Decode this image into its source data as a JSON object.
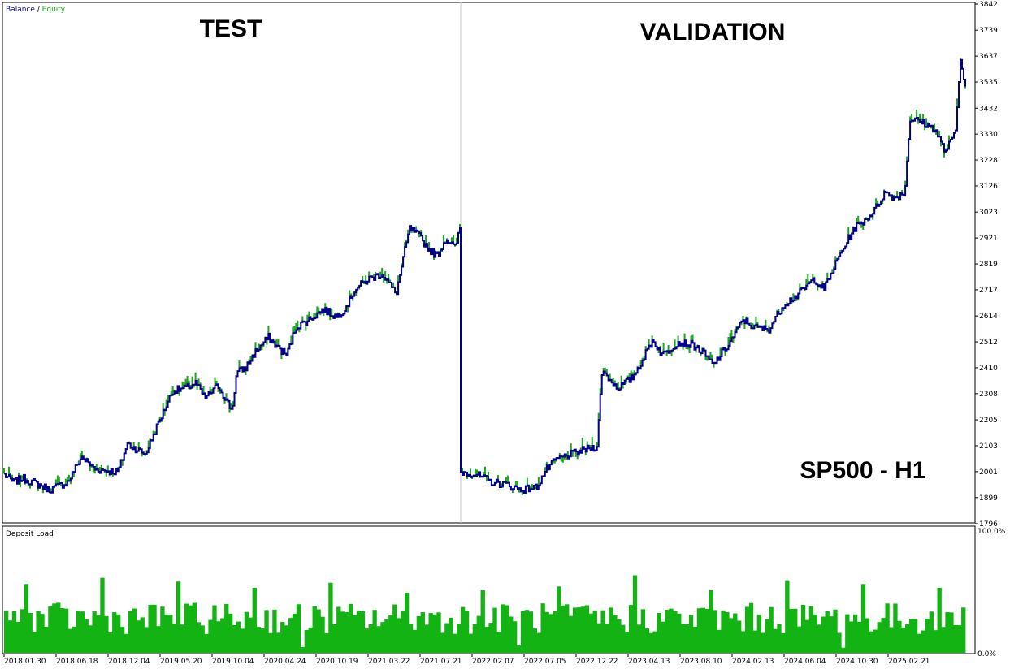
{
  "legend": {
    "balance": "Balance",
    "sep": " / ",
    "equity": "Equity"
  },
  "overlay": {
    "test": "TEST",
    "validation": "VALIDATION",
    "symbol": "SP500 - H1"
  },
  "deposit_panel": {
    "title": "Deposit Load",
    "top_label": "100.0%",
    "bottom_label": "0.0%"
  },
  "colors": {
    "balance": "#00008b",
    "equity": "#1aa81a",
    "deposit": "#13b313",
    "axis": "#000000",
    "divider": "#c8c8c8"
  },
  "chart_data": [
    {
      "type": "line",
      "series": [
        {
          "name": "Balance",
          "color": "#00008b"
        },
        {
          "name": "Equity",
          "color": "#1aa81a"
        }
      ],
      "ylim": [
        1796,
        3842
      ],
      "yticks": [
        "3842",
        "3739",
        "3637",
        "3535",
        "3432",
        "3330",
        "3228",
        "3126",
        "3023",
        "2921",
        "2819",
        "2717",
        "2614",
        "2512",
        "2410",
        "2308",
        "2205",
        "2103",
        "2001",
        "1899",
        "1796"
      ],
      "segments": [
        {
          "label": "TEST",
          "points": [
            [
              0,
              1990
            ],
            [
              0.02,
              1960
            ],
            [
              0.04,
              1975
            ],
            [
              0.07,
              1955
            ],
            [
              0.1,
              1930
            ],
            [
              0.14,
              1960
            ],
            [
              0.17,
              2060
            ],
            [
              0.2,
              2010
            ],
            [
              0.25,
              2000
            ],
            [
              0.27,
              2110
            ],
            [
              0.31,
              2070
            ],
            [
              0.34,
              2200
            ],
            [
              0.37,
              2320
            ],
            [
              0.4,
              2330
            ],
            [
              0.42,
              2350
            ],
            [
              0.44,
              2290
            ],
            [
              0.47,
              2340
            ],
            [
              0.5,
              2240
            ],
            [
              0.51,
              2390
            ],
            [
              0.53,
              2410
            ],
            [
              0.55,
              2470
            ],
            [
              0.58,
              2530
            ],
            [
              0.6,
              2490
            ],
            [
              0.62,
              2460
            ],
            [
              0.64,
              2570
            ],
            [
              0.67,
              2600
            ],
            [
              0.7,
              2640
            ],
            [
              0.73,
              2610
            ],
            [
              0.75,
              2650
            ],
            [
              0.77,
              2720
            ],
            [
              0.8,
              2760
            ],
            [
              0.83,
              2780
            ],
            [
              0.86,
              2700
            ],
            [
              0.88,
              2880
            ],
            [
              0.89,
              2960
            ],
            [
              0.91,
              2930
            ],
            [
              0.93,
              2880
            ],
            [
              0.95,
              2850
            ],
            [
              0.97,
              2920
            ],
            [
              0.99,
              2880
            ],
            [
              1,
              2960
            ]
          ]
        },
        {
          "label": "VALIDATION",
          "points": [
            [
              0,
              2000
            ],
            [
              0.03,
              1990
            ],
            [
              0.06,
              1960
            ],
            [
              0.09,
              1950
            ],
            [
              0.12,
              1930
            ],
            [
              0.15,
              1940
            ],
            [
              0.17,
              2010
            ],
            [
              0.19,
              2050
            ],
            [
              0.22,
              2070
            ],
            [
              0.25,
              2090
            ],
            [
              0.27,
              2100
            ],
            [
              0.28,
              2400
            ],
            [
              0.31,
              2330
            ],
            [
              0.34,
              2370
            ],
            [
              0.36,
              2440
            ],
            [
              0.38,
              2520
            ],
            [
              0.4,
              2460
            ],
            [
              0.43,
              2510
            ],
            [
              0.46,
              2500
            ],
            [
              0.48,
              2470
            ],
            [
              0.5,
              2420
            ],
            [
              0.53,
              2500
            ],
            [
              0.56,
              2600
            ],
            [
              0.58,
              2570
            ],
            [
              0.61,
              2560
            ],
            [
              0.64,
              2660
            ],
            [
              0.67,
              2700
            ],
            [
              0.7,
              2760
            ],
            [
              0.72,
              2720
            ],
            [
              0.75,
              2850
            ],
            [
              0.78,
              2960
            ],
            [
              0.8,
              2990
            ],
            [
              0.82,
              3030
            ],
            [
              0.84,
              3100
            ],
            [
              0.86,
              3080
            ],
            [
              0.88,
              3100
            ],
            [
              0.89,
              3390
            ],
            [
              0.91,
              3380
            ],
            [
              0.94,
              3350
            ],
            [
              0.96,
              3260
            ],
            [
              0.98,
              3330
            ],
            [
              0.985,
              3460
            ],
            [
              0.99,
              3640
            ],
            [
              1,
              3520
            ]
          ]
        }
      ]
    },
    {
      "type": "bar",
      "title": "Deposit Load",
      "ylim": [
        0,
        100
      ],
      "unit": "%",
      "bar_count": 240,
      "typical_range": [
        15,
        40
      ],
      "peak_values": [
        55,
        60,
        57,
        52,
        56,
        48,
        50,
        53,
        62,
        50,
        58,
        55,
        52
      ]
    }
  ],
  "x_axis": {
    "labels": [
      "2018.01.30",
      "2018.06.18",
      "2018.12.04",
      "2019.05.20",
      "2019.10.04",
      "2020.04.24",
      "2020.10.19",
      "2021.03.22",
      "2021.07.21",
      "2022.02.07",
      "2022.07.05",
      "2022.12.22",
      "2023.04.13",
      "2023.08.10",
      "2024.02.13",
      "2024.06.04",
      "2024.10.30",
      "2025.02.21"
    ]
  }
}
